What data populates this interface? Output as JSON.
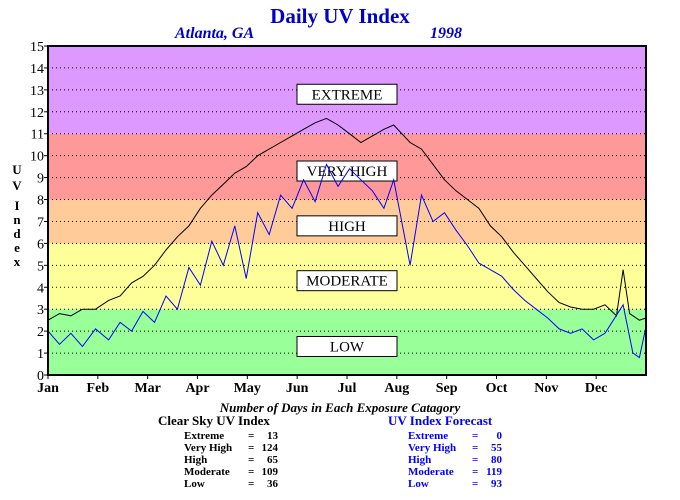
{
  "chart_data": {
    "type": "line",
    "title": "Daily UV Index",
    "location": "Atlanta, GA",
    "year": "1998",
    "ylabel": "UV Index",
    "ylim": [
      0,
      15
    ],
    "yticks": [
      0,
      1,
      2,
      3,
      4,
      5,
      6,
      7,
      8,
      9,
      10,
      11,
      12,
      13,
      14,
      15
    ],
    "xlim": [
      1,
      366
    ],
    "months": [
      "Jan",
      "Feb",
      "Mar",
      "Apr",
      "May",
      "Jun",
      "Jul",
      "Aug",
      "Sep",
      "Oct",
      "Nov",
      "Dec"
    ],
    "grid": true,
    "bands": [
      {
        "name": "LOW",
        "from": 0,
        "to": 3,
        "color": "#99ff99",
        "label_at": 1.3
      },
      {
        "name": "MODERATE",
        "from": 3,
        "to": 6,
        "color": "#ffff99",
        "label_at": 4.3
      },
      {
        "name": "HIGH",
        "from": 6,
        "to": 8,
        "color": "#ffcc99",
        "label_at": 6.8
      },
      {
        "name": "VERY HIGH",
        "from": 8,
        "to": 11,
        "color": "#ff9999",
        "label_at": 9.3
      },
      {
        "name": "EXTREME",
        "from": 11,
        "to": 15,
        "color": "#dd99ff",
        "label_at": 12.8
      }
    ],
    "series": [
      {
        "name": "Clear Sky UV Index",
        "color": "#000000",
        "points": [
          [
            1,
            2.5
          ],
          [
            8,
            2.8
          ],
          [
            15,
            2.7
          ],
          [
            22,
            3.0
          ],
          [
            30,
            3.0
          ],
          [
            38,
            3.4
          ],
          [
            45,
            3.6
          ],
          [
            52,
            4.2
          ],
          [
            59,
            4.5
          ],
          [
            66,
            5.0
          ],
          [
            73,
            5.7
          ],
          [
            80,
            6.3
          ],
          [
            87,
            6.8
          ],
          [
            94,
            7.6
          ],
          [
            101,
            8.2
          ],
          [
            108,
            8.7
          ],
          [
            115,
            9.2
          ],
          [
            122,
            9.5
          ],
          [
            129,
            10.0
          ],
          [
            136,
            10.3
          ],
          [
            143,
            10.6
          ],
          [
            150,
            10.9
          ],
          [
            157,
            11.2
          ],
          [
            164,
            11.5
          ],
          [
            171,
            11.7
          ],
          [
            178,
            11.4
          ],
          [
            185,
            11.0
          ],
          [
            192,
            10.6
          ],
          [
            199,
            10.9
          ],
          [
            206,
            11.2
          ],
          [
            212,
            11.4
          ],
          [
            222,
            10.6
          ],
          [
            229,
            10.3
          ],
          [
            236,
            9.6
          ],
          [
            243,
            8.9
          ],
          [
            250,
            8.4
          ],
          [
            257,
            8.0
          ],
          [
            264,
            7.6
          ],
          [
            271,
            6.8
          ],
          [
            278,
            6.3
          ],
          [
            285,
            5.6
          ],
          [
            292,
            5.0
          ],
          [
            299,
            4.4
          ],
          [
            306,
            3.8
          ],
          [
            313,
            3.3
          ],
          [
            320,
            3.1
          ],
          [
            327,
            3.0
          ],
          [
            334,
            3.0
          ],
          [
            341,
            3.2
          ],
          [
            348,
            2.7
          ],
          [
            352,
            4.8
          ],
          [
            356,
            2.8
          ],
          [
            362,
            2.5
          ],
          [
            366,
            2.6
          ]
        ]
      },
      {
        "name": "UV Index Forecast",
        "color": "#0000ff",
        "points": [
          [
            1,
            2.0
          ],
          [
            8,
            1.4
          ],
          [
            15,
            1.9
          ],
          [
            22,
            1.3
          ],
          [
            30,
            2.1
          ],
          [
            38,
            1.6
          ],
          [
            45,
            2.4
          ],
          [
            52,
            2.0
          ],
          [
            59,
            2.9
          ],
          [
            66,
            2.4
          ],
          [
            73,
            3.6
          ],
          [
            80,
            3.0
          ],
          [
            87,
            4.9
          ],
          [
            94,
            4.1
          ],
          [
            101,
            6.1
          ],
          [
            108,
            5.0
          ],
          [
            115,
            6.8
          ],
          [
            122,
            4.4
          ],
          [
            129,
            7.4
          ],
          [
            136,
            6.4
          ],
          [
            143,
            8.2
          ],
          [
            150,
            7.6
          ],
          [
            157,
            8.9
          ],
          [
            164,
            7.9
          ],
          [
            171,
            9.6
          ],
          [
            178,
            8.6
          ],
          [
            185,
            9.4
          ],
          [
            192,
            8.9
          ],
          [
            199,
            8.4
          ],
          [
            206,
            7.6
          ],
          [
            212,
            8.9
          ],
          [
            222,
            5.0
          ],
          [
            229,
            8.2
          ],
          [
            236,
            7.0
          ],
          [
            243,
            7.4
          ],
          [
            250,
            6.6
          ],
          [
            257,
            5.9
          ],
          [
            264,
            5.1
          ],
          [
            271,
            4.8
          ],
          [
            278,
            4.5
          ],
          [
            285,
            3.9
          ],
          [
            292,
            3.4
          ],
          [
            299,
            3.0
          ],
          [
            306,
            2.6
          ],
          [
            313,
            2.1
          ],
          [
            320,
            1.9
          ],
          [
            327,
            2.1
          ],
          [
            334,
            1.6
          ],
          [
            341,
            1.9
          ],
          [
            352,
            3.2
          ],
          [
            358,
            1.0
          ],
          [
            362,
            0.8
          ],
          [
            366,
            2.2
          ]
        ]
      }
    ],
    "footer_title": "Number of Days in Each Exposure Catagory",
    "stats": [
      {
        "title": "Clear Sky UV Index",
        "color": "#000000",
        "rows": [
          {
            "label": "Extreme",
            "sep": "=",
            "value": "13"
          },
          {
            "label": "Very High",
            "sep": "=",
            "value": "124"
          },
          {
            "label": "High",
            "sep": "=",
            "value": "65"
          },
          {
            "label": "Moderate",
            "sep": "=",
            "value": "109"
          },
          {
            "label": "Low",
            "sep": "=",
            "value": "36"
          }
        ]
      },
      {
        "title": "UV Index Forecast",
        "color": "#0000ff",
        "rows": [
          {
            "label": "Extreme",
            "sep": "=",
            "value": "0"
          },
          {
            "label": "Very High",
            "sep": "=",
            "value": "55"
          },
          {
            "label": "High",
            "sep": "=",
            "value": "80"
          },
          {
            "label": "Moderate",
            "sep": "=",
            "value": "119"
          },
          {
            "label": "Low",
            "sep": "=",
            "value": "93"
          }
        ]
      }
    ]
  }
}
